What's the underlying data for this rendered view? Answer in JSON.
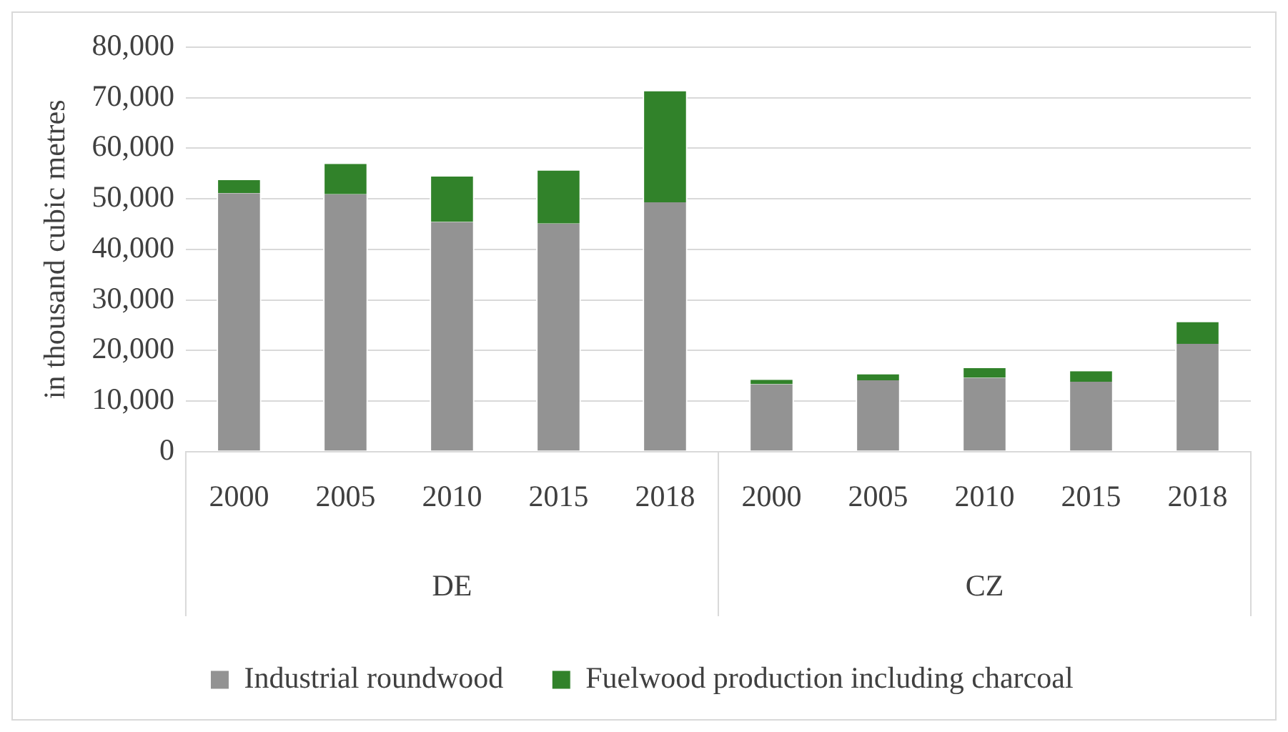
{
  "chart_data": {
    "type": "bar",
    "ylabel": "in thousand cubic metres",
    "categories": [
      "2000",
      "2005",
      "2010",
      "2015",
      "2018",
      "2000",
      "2005",
      "2010",
      "2015",
      "2018"
    ],
    "stacked": true,
    "series": [
      {
        "name": "Industrial roundwood",
        "color": "#939393",
        "values": [
          51100,
          50900,
          45400,
          45100,
          49300,
          13300,
          14100,
          14600,
          13800,
          21300
        ]
      },
      {
        "name": "Fuelwood production including charcoal",
        "color": "#31822a",
        "values": [
          2600,
          6000,
          9000,
          10500,
          22000,
          900,
          1200,
          1900,
          2100,
          4300
        ]
      }
    ],
    "ylim": [
      0,
      80000
    ],
    "yticks": [
      {
        "value": 0,
        "label": "0"
      },
      {
        "value": 10000,
        "label": "10,000"
      },
      {
        "value": 20000,
        "label": "20,000"
      },
      {
        "value": 30000,
        "label": "30,000"
      },
      {
        "value": 40000,
        "label": "40,000"
      },
      {
        "value": 50000,
        "label": "50,000"
      },
      {
        "value": 60000,
        "label": "60,000"
      },
      {
        "value": 70000,
        "label": "70,000"
      },
      {
        "value": 80000,
        "label": "80,000"
      }
    ],
    "grid": "y",
    "legend": "bottom",
    "annotations": [
      "DE",
      "CZ"
    ]
  }
}
